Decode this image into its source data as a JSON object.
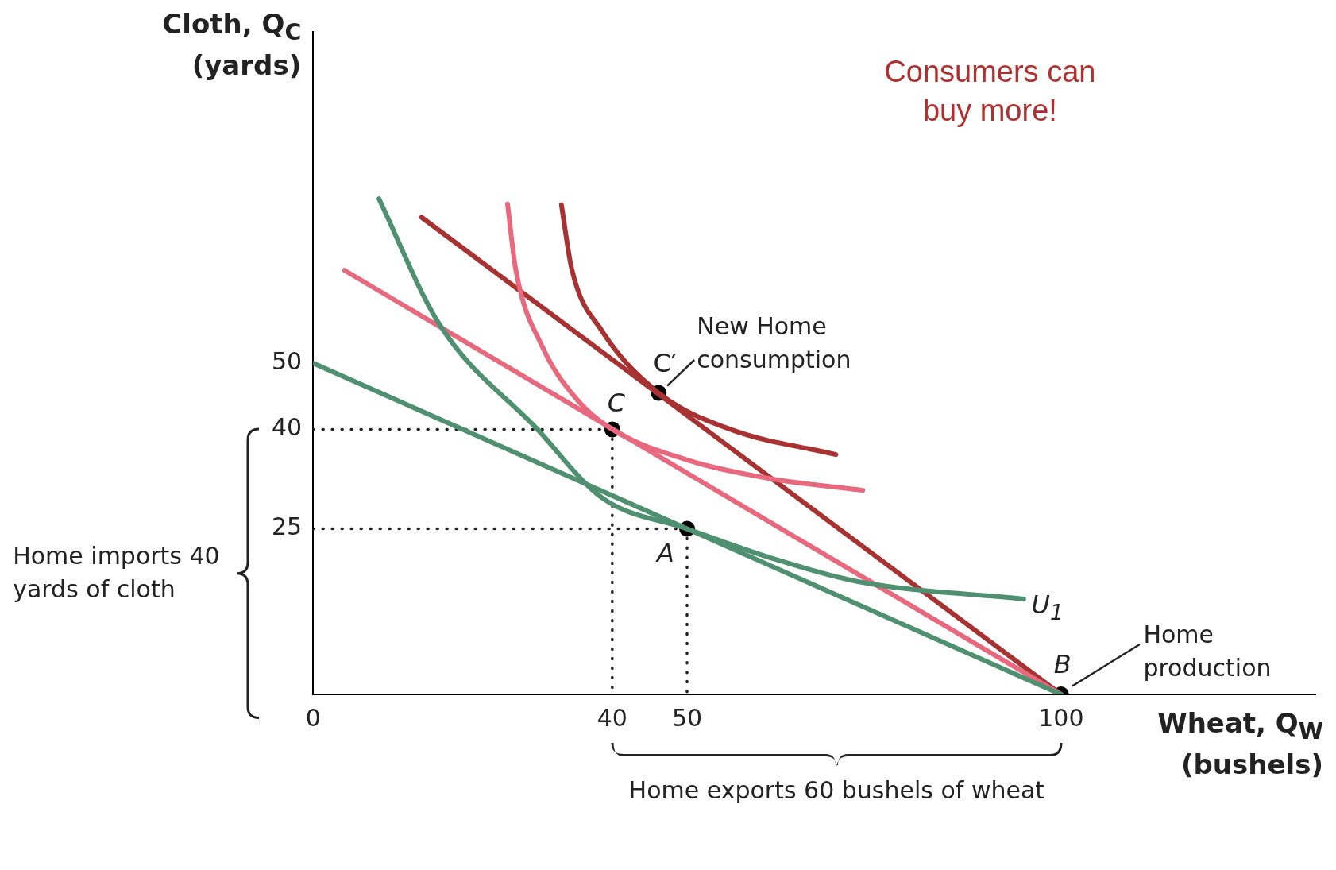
{
  "chart_data": {
    "type": "line",
    "xlabel": "Wheat, Q$_{W}$ (bushels)",
    "ylabel": "Cloth, Q$_{C}$ (yards)",
    "xlim": [
      0,
      134
    ],
    "ylim": [
      0,
      100
    ],
    "xticks": [
      0,
      40,
      50,
      100
    ],
    "yticks": [
      25,
      40,
      50
    ],
    "series": [
      {
        "type": "line",
        "color": "#4e9070",
        "x": [
          0,
          100
        ],
        "values": [
          50,
          0
        ]
      },
      {
        "type": "line",
        "color": "#4e9070",
        "x": [
          8.8,
          16.8,
          30,
          38.6,
          50,
          61.5,
          73,
          95
        ],
        "values": [
          74.8,
          56,
          40,
          29.7,
          25,
          20.5,
          17,
          14.4
        ]
      },
      {
        "type": "line",
        "color": "#e8687e",
        "x": [
          4.2,
          100
        ],
        "values": [
          64,
          0
        ]
      },
      {
        "type": "line",
        "color": "#e8687e",
        "x": [
          26,
          27.1,
          30.6,
          35.2,
          40,
          50,
          61.5,
          73.5
        ],
        "values": [
          74,
          64.1,
          52.6,
          44.6,
          40,
          35.4,
          32.5,
          30.8
        ]
      },
      {
        "type": "line",
        "color": "#a83232",
        "x": [
          14.5,
          100
        ],
        "values": [
          72,
          0
        ]
      },
      {
        "type": "line",
        "color": "#a83232",
        "x": [
          33.2,
          34.6,
          38.6,
          46.2,
          55.8,
          69.9
        ],
        "values": [
          73.9,
          64.1,
          54.9,
          45.5,
          40,
          36.2
        ]
      },
      {
        "type": "line",
        "color": "#222222",
        "line_style": "dotted",
        "x": [
          0,
          40
        ],
        "values": [
          40,
          40
        ]
      },
      {
        "type": "line",
        "color": "#222222",
        "line_style": "dotted",
        "x": [
          40,
          40
        ],
        "values": [
          40,
          0
        ]
      },
      {
        "type": "line",
        "color": "#222222",
        "line_style": "dotted",
        "x": [
          0,
          50
        ],
        "values": [
          25,
          25
        ]
      },
      {
        "type": "line",
        "color": "#222222",
        "line_style": "dotted",
        "x": [
          50,
          50
        ],
        "values": [
          25,
          0
        ]
      },
      {
        "type": "scatter",
        "color": "#000000",
        "marker": "circle",
        "x": [
          40,
          46.2,
          50,
          100
        ],
        "values": [
          40,
          45.5,
          25,
          0
        ]
      }
    ],
    "annotations": [
      "Consumers can buy more!",
      "Home imports 40 yards of cloth",
      "Home exports 60 bushels of wheat",
      {
        "text": "New Home consumption",
        "x": 46.2,
        "y": 45.5
      },
      "Home production",
      {
        "text": "A",
        "x": 50,
        "y": 25
      },
      {
        "text": "C",
        "x": 40,
        "y": 40
      },
      {
        "text": "C′",
        "x": 46.2,
        "y": 45.5
      },
      {
        "text": "B",
        "x": 100,
        "y": 0
      },
      {
        "text": "U$_{1}$",
        "x": 95,
        "y": 14.4
      }
    ]
  }
}
